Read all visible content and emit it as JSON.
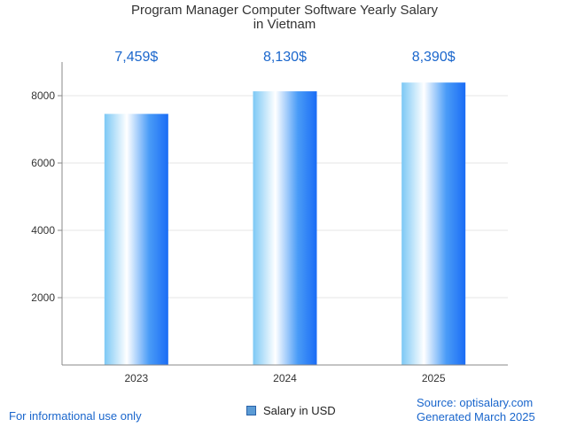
{
  "title_line1": "Program Manager Computer Software Yearly Salary",
  "title_line2": "in Vietnam",
  "footer": {
    "left": "For informational use only",
    "source": "Source: optisalary.com",
    "generated": "Generated March 2025"
  },
  "colors": {
    "bar_dark": "#1a6cf5",
    "bar_light": "#ffffff",
    "bar_mid": "#7cc8f5",
    "label": "#1a66cc"
  },
  "chart_data": {
    "type": "bar",
    "categories": [
      "2023",
      "2024",
      "2025"
    ],
    "series": [
      {
        "name": "Salary in USD",
        "values": [
          7459,
          8130,
          8390
        ]
      }
    ],
    "value_labels": [
      "7,459$",
      "8,130$",
      "8,390$"
    ],
    "ylim": [
      0,
      9000
    ],
    "yticks": [
      2000,
      4000,
      6000,
      8000
    ],
    "grid": true,
    "legend": "bottom-center"
  }
}
